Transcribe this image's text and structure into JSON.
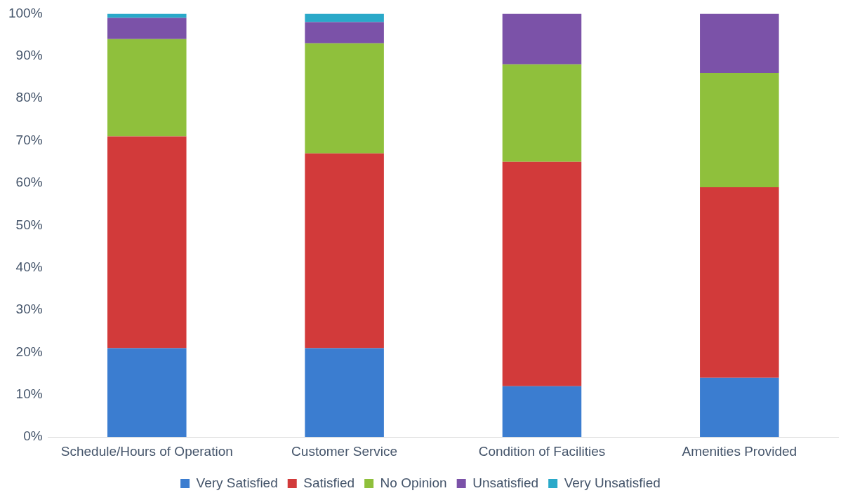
{
  "chart_data": {
    "type": "bar",
    "stacked": true,
    "categories": [
      "Schedule/Hours of Operation",
      "Customer Service",
      "Condition of Facilities",
      "Amenities Provided"
    ],
    "series": [
      {
        "name": "Very Satisfied",
        "color": "#3b7dd0",
        "values": [
          21,
          21,
          12,
          14
        ]
      },
      {
        "name": "Satisfied",
        "color": "#d23a3a",
        "values": [
          50,
          46,
          53,
          45
        ]
      },
      {
        "name": "No Opinion",
        "color": "#8fc03c",
        "values": [
          23,
          26,
          23,
          27
        ]
      },
      {
        "name": "Unsatisfied",
        "color": "#7b52a8",
        "values": [
          5,
          5,
          12,
          14
        ]
      },
      {
        "name": "Very Unsatisfied",
        "color": "#2aa9c9",
        "values": [
          1,
          2,
          0,
          0
        ]
      }
    ],
    "ylim": [
      0,
      100
    ],
    "yticks": [
      {
        "value": 0,
        "label": "0%"
      },
      {
        "value": 10,
        "label": "10%"
      },
      {
        "value": 20,
        "label": "20%"
      },
      {
        "value": 30,
        "label": "30%"
      },
      {
        "value": 40,
        "label": "40%"
      },
      {
        "value": 50,
        "label": "50%"
      },
      {
        "value": 60,
        "label": "60%"
      },
      {
        "value": 70,
        "label": "70%"
      },
      {
        "value": 80,
        "label": "80%"
      },
      {
        "value": 90,
        "label": "90%"
      },
      {
        "value": 100,
        "label": "100%"
      }
    ],
    "grid": false,
    "legend": "bottom"
  }
}
